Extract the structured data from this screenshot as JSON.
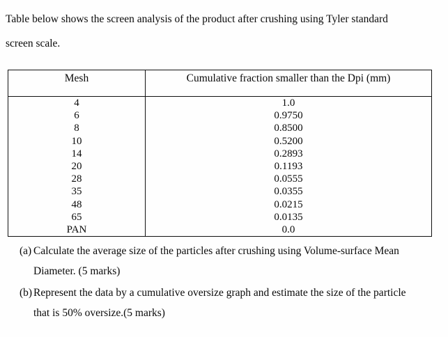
{
  "intro": "Table below shows the screen analysis of the product after crushing using Tyler standard\nscreen scale.",
  "table": {
    "headers": [
      "Mesh",
      "Cumulative fraction smaller than the Dpi (mm)"
    ],
    "rows": [
      {
        "mesh": "4",
        "fraction": "1.0"
      },
      {
        "mesh": "6",
        "fraction": "0.9750"
      },
      {
        "mesh": "8",
        "fraction": "0.8500"
      },
      {
        "mesh": "10",
        "fraction": "0.5200"
      },
      {
        "mesh": "14",
        "fraction": "0.2893"
      },
      {
        "mesh": "20",
        "fraction": "0.1193"
      },
      {
        "mesh": "28",
        "fraction": "0.0555"
      },
      {
        "mesh": "35",
        "fraction": "0.0355"
      },
      {
        "mesh": "48",
        "fraction": "0.0215"
      },
      {
        "mesh": "65",
        "fraction": "0.0135"
      },
      {
        "mesh": "PAN",
        "fraction": "0.0"
      }
    ]
  },
  "questions": [
    {
      "marker": "(a)",
      "text": "Calculate the average size of the particles after crushing using Volume-surface Mean\nDiameter. (5 marks)"
    },
    {
      "marker": "(b)",
      "text": "Represent the data by a cumulative oversize graph and estimate the size of the particle\nthat is 50% oversize.(5 marks)"
    }
  ],
  "colors": {
    "background": "#fefefe",
    "text": "#0a0a0a",
    "border": "#111111"
  }
}
